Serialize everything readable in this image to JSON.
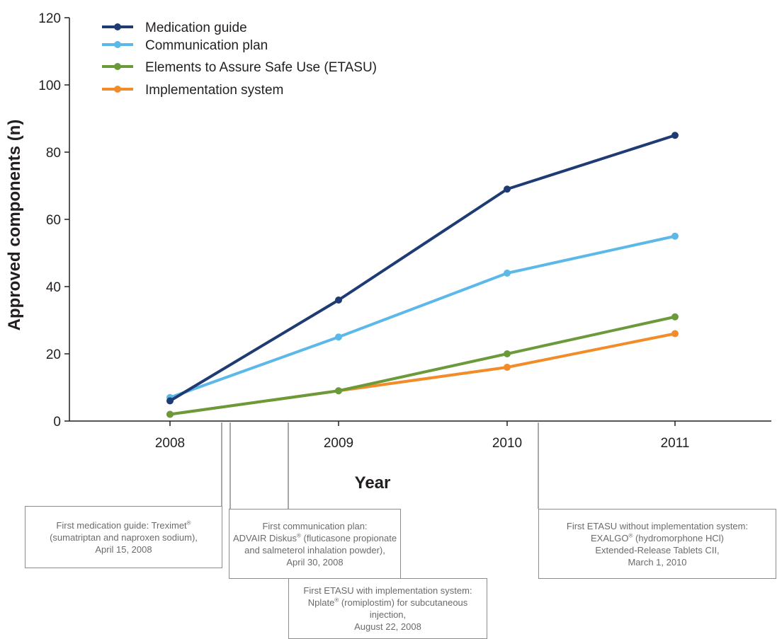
{
  "chart_data": {
    "type": "line",
    "title": "",
    "xlabel": "Year",
    "ylabel": "Approved components (n)",
    "categories": [
      "2008",
      "2009",
      "2010",
      "2011"
    ],
    "ylim": [
      0,
      120
    ],
    "yticks": [
      0,
      20,
      40,
      60,
      80,
      100,
      120
    ],
    "grid": false,
    "legend_position": "top-left",
    "series": [
      {
        "name": "Medication guide",
        "color": "#1f3b73",
        "values": [
          6,
          36,
          69,
          85
        ]
      },
      {
        "name": "Communication plan",
        "color": "#5bb8e8",
        "values": [
          7,
          25,
          44,
          55
        ]
      },
      {
        "name": "Elements to Assure Safe Use (ETASU)",
        "color": "#6a9a3a",
        "values": [
          2,
          9,
          20,
          31
        ]
      },
      {
        "name": "Implementation system",
        "color": "#f28c28",
        "values": [
          2,
          9,
          16,
          26
        ]
      }
    ]
  },
  "annotations": [
    {
      "id": "medguide",
      "lines": [
        [
          "First medication guide: Treximet",
          "®",
          ""
        ],
        [
          "(sumatriptan and naproxen sodium),"
        ],
        [
          "April 15, 2008"
        ]
      ]
    },
    {
      "id": "commplan",
      "lines": [
        [
          "First communication plan:"
        ],
        [
          "ADVAIR Diskus",
          "®",
          " (fluticasone propionate"
        ],
        [
          "and salmeterol inhalation powder),"
        ],
        [
          "April 30, 2008"
        ]
      ]
    },
    {
      "id": "etasu-impl",
      "lines": [
        [
          "First ETASU with implementation system:"
        ],
        [
          "Nplate",
          "®",
          " (romiplostim) for subcutaneous injection,"
        ],
        [
          "August 22, 2008"
        ]
      ]
    },
    {
      "id": "etasu-noimpl",
      "lines": [
        [
          "First ETASU without implementation system:"
        ],
        [
          "EXALGO",
          "®",
          " (hydromorphone HCl)"
        ],
        [
          "Extended-Release Tablets CII,"
        ],
        [
          "March 1, 2010"
        ]
      ]
    }
  ]
}
